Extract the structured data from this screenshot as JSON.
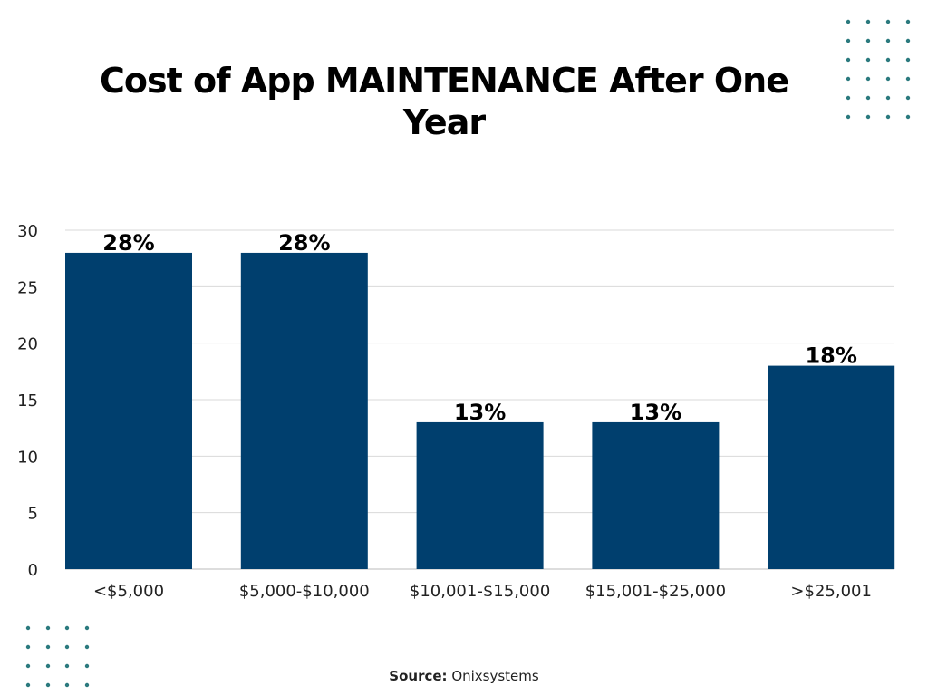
{
  "chart_data": {
    "type": "bar",
    "title": "Cost of App MAINTENANCE After One Year",
    "categories": [
      "<$5,000",
      "$5,000-$10,000",
      "$10,001-$15,000",
      "$15,001-$25,000",
      ">$25,001"
    ],
    "values": [
      28,
      28,
      13,
      13,
      18
    ],
    "data_labels": [
      "28%",
      "28%",
      "13%",
      "13%",
      "18%"
    ],
    "xlabel": "",
    "ylabel": "",
    "ylim": [
      0,
      30
    ],
    "yticks": [
      0,
      5,
      10,
      15,
      20,
      25,
      30
    ],
    "grid": true,
    "bar_color": "#003f6e",
    "grid_color": "#d9d9d9",
    "decoration_dot_color": "#2b7a7e"
  },
  "source": {
    "label": "Source:",
    "value": "Onixsystems"
  }
}
